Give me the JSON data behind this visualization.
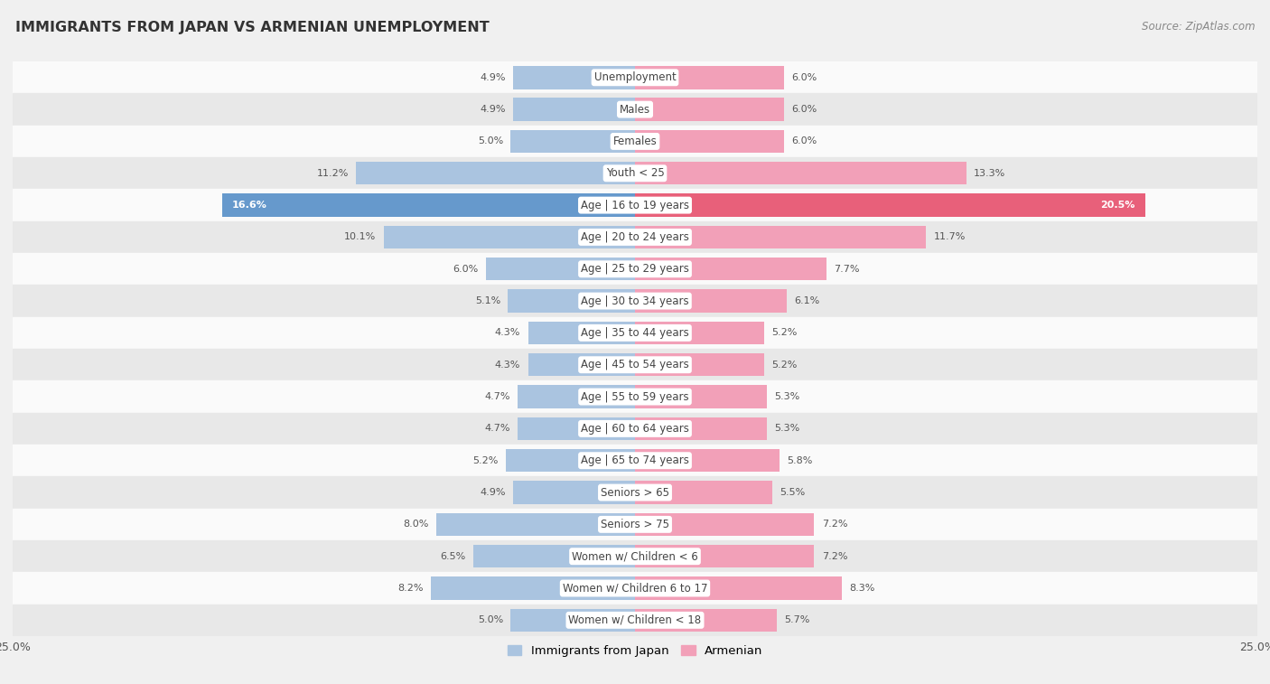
{
  "title": "IMMIGRANTS FROM JAPAN VS ARMENIAN UNEMPLOYMENT",
  "source": "Source: ZipAtlas.com",
  "categories": [
    "Unemployment",
    "Males",
    "Females",
    "Youth < 25",
    "Age | 16 to 19 years",
    "Age | 20 to 24 years",
    "Age | 25 to 29 years",
    "Age | 30 to 34 years",
    "Age | 35 to 44 years",
    "Age | 45 to 54 years",
    "Age | 55 to 59 years",
    "Age | 60 to 64 years",
    "Age | 65 to 74 years",
    "Seniors > 65",
    "Seniors > 75",
    "Women w/ Children < 6",
    "Women w/ Children 6 to 17",
    "Women w/ Children < 18"
  ],
  "japan_values": [
    4.9,
    4.9,
    5.0,
    11.2,
    16.6,
    10.1,
    6.0,
    5.1,
    4.3,
    4.3,
    4.7,
    4.7,
    5.2,
    4.9,
    8.0,
    6.5,
    8.2,
    5.0
  ],
  "armenian_values": [
    6.0,
    6.0,
    6.0,
    13.3,
    20.5,
    11.7,
    7.7,
    6.1,
    5.2,
    5.2,
    5.3,
    5.3,
    5.8,
    5.5,
    7.2,
    7.2,
    8.3,
    5.7
  ],
  "japan_color": "#aac4e0",
  "armenian_color": "#f2a0b8",
  "japan_highlight": "#6699cc",
  "armenian_highlight": "#e8607a",
  "highlight_row": 4,
  "axis_max": 25.0,
  "bar_height": 0.72,
  "bg_color": "#f0f0f0",
  "row_bg_light": "#fafafa",
  "row_bg_dark": "#e8e8e8",
  "title_fontsize": 11.5,
  "label_fontsize": 8.5,
  "value_fontsize": 8.0,
  "source_fontsize": 8.5
}
